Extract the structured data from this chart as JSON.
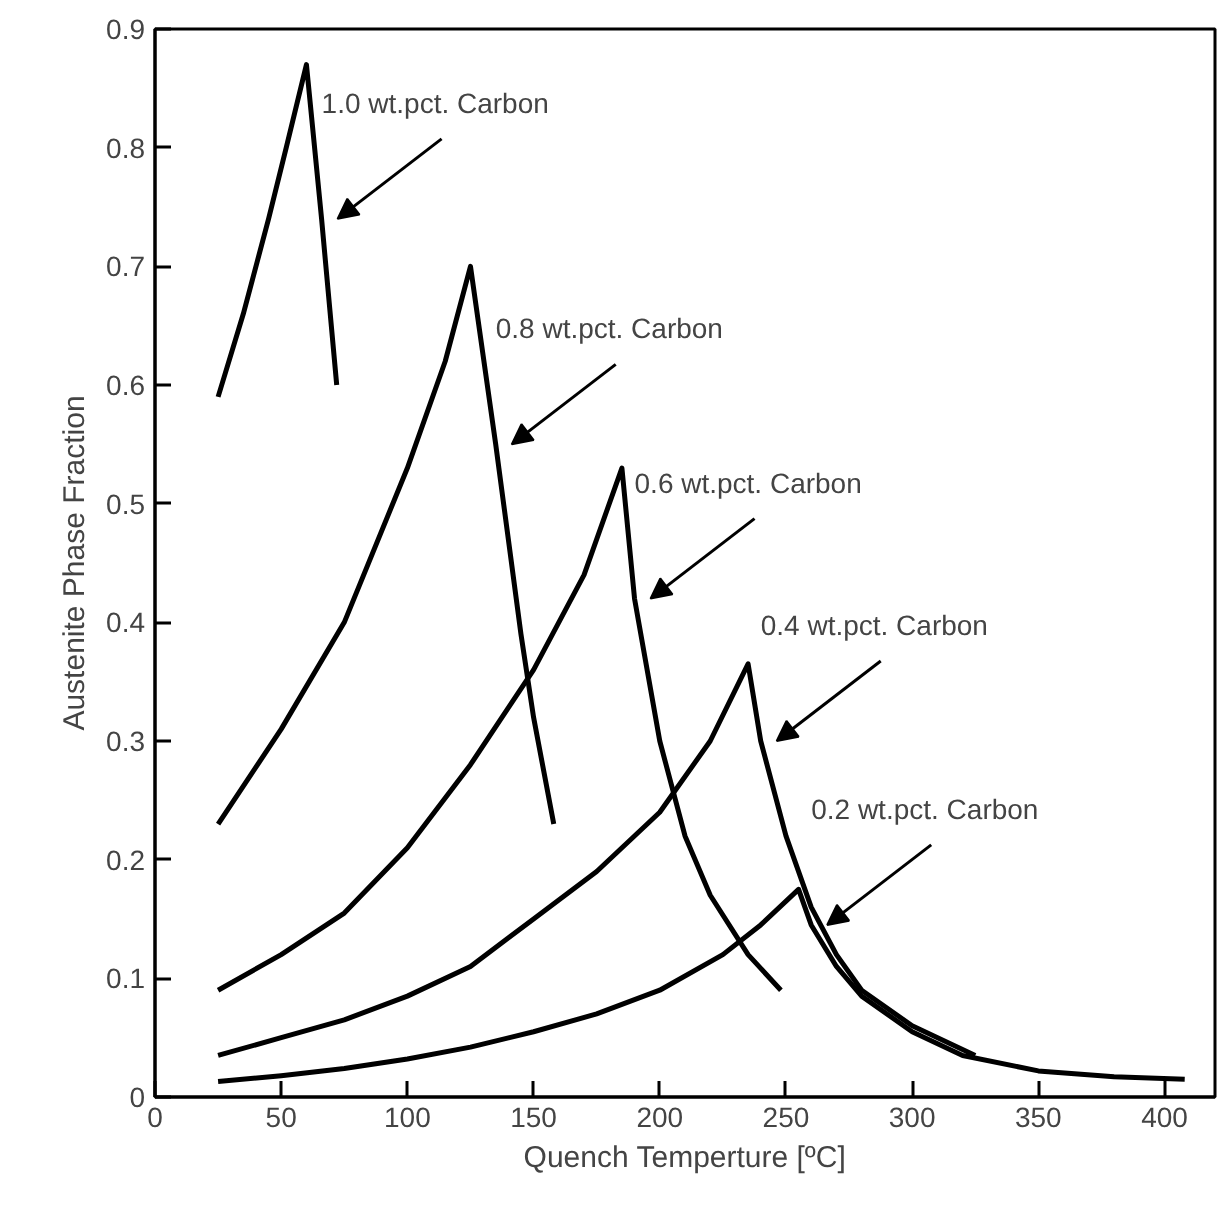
{
  "chart_data": {
    "type": "line",
    "xlabel": "Quench Temperture [ºC]",
    "ylabel": "Austenite Phase Fraction",
    "xlim": [
      0,
      420
    ],
    "ylim": [
      0,
      0.9
    ],
    "xticks": [
      0,
      50,
      100,
      150,
      200,
      250,
      300,
      350,
      400
    ],
    "yticks": [
      0,
      0.1,
      0.2,
      0.3,
      0.4,
      0.5,
      0.6,
      0.7,
      0.8,
      0.9
    ],
    "grid": false,
    "marker": "none",
    "line_style": "solid",
    "series": [
      {
        "color": "#000000",
        "x": [
          25,
          35,
          45,
          52,
          60,
          66,
          72
        ],
        "values": [
          0.59,
          0.66,
          0.74,
          0.8,
          0.87,
          0.74,
          0.6
        ]
      },
      {
        "color": "#000000",
        "x": [
          25,
          50,
          75,
          100,
          115,
          125,
          135,
          145,
          150,
          158
        ],
        "values": [
          0.23,
          0.31,
          0.4,
          0.53,
          0.62,
          0.7,
          0.55,
          0.39,
          0.32,
          0.23
        ]
      },
      {
        "color": "#000000",
        "x": [
          25,
          50,
          75,
          100,
          125,
          150,
          170,
          185,
          190,
          200,
          210,
          220,
          235,
          248
        ],
        "values": [
          0.09,
          0.12,
          0.155,
          0.21,
          0.28,
          0.36,
          0.44,
          0.53,
          0.42,
          0.3,
          0.22,
          0.17,
          0.12,
          0.09
        ]
      },
      {
        "color": "#000000",
        "x": [
          25,
          50,
          75,
          100,
          125,
          150,
          175,
          200,
          220,
          235,
          240,
          250,
          260,
          270,
          280,
          300,
          325
        ],
        "values": [
          0.035,
          0.05,
          0.065,
          0.085,
          0.11,
          0.15,
          0.19,
          0.24,
          0.3,
          0.365,
          0.3,
          0.22,
          0.16,
          0.12,
          0.09,
          0.06,
          0.035
        ]
      },
      {
        "color": "#000000",
        "x": [
          25,
          50,
          75,
          100,
          125,
          150,
          175,
          200,
          225,
          240,
          255,
          260,
          270,
          280,
          300,
          320,
          350,
          380,
          408
        ],
        "values": [
          0.013,
          0.018,
          0.024,
          0.032,
          0.042,
          0.055,
          0.07,
          0.09,
          0.12,
          0.145,
          0.175,
          0.145,
          0.11,
          0.085,
          0.055,
          0.035,
          0.022,
          0.017,
          0.015
        ]
      }
    ],
    "annotations": [
      {
        "text": "1.0 wt.pct. Carbon",
        "x": 66,
        "y": 0.74
      },
      {
        "text": "0.8 wt.pct. Carbon",
        "x": 135,
        "y": 0.55
      },
      {
        "text": "0.6 wt.pct. Carbon",
        "x": 190,
        "y": 0.42
      },
      {
        "text": "0.4 wt.pct. Carbon",
        "x": 240,
        "y": 0.3
      },
      {
        "text": "0.2 wt.pct. Carbon",
        "x": 260,
        "y": 0.145
      }
    ]
  }
}
